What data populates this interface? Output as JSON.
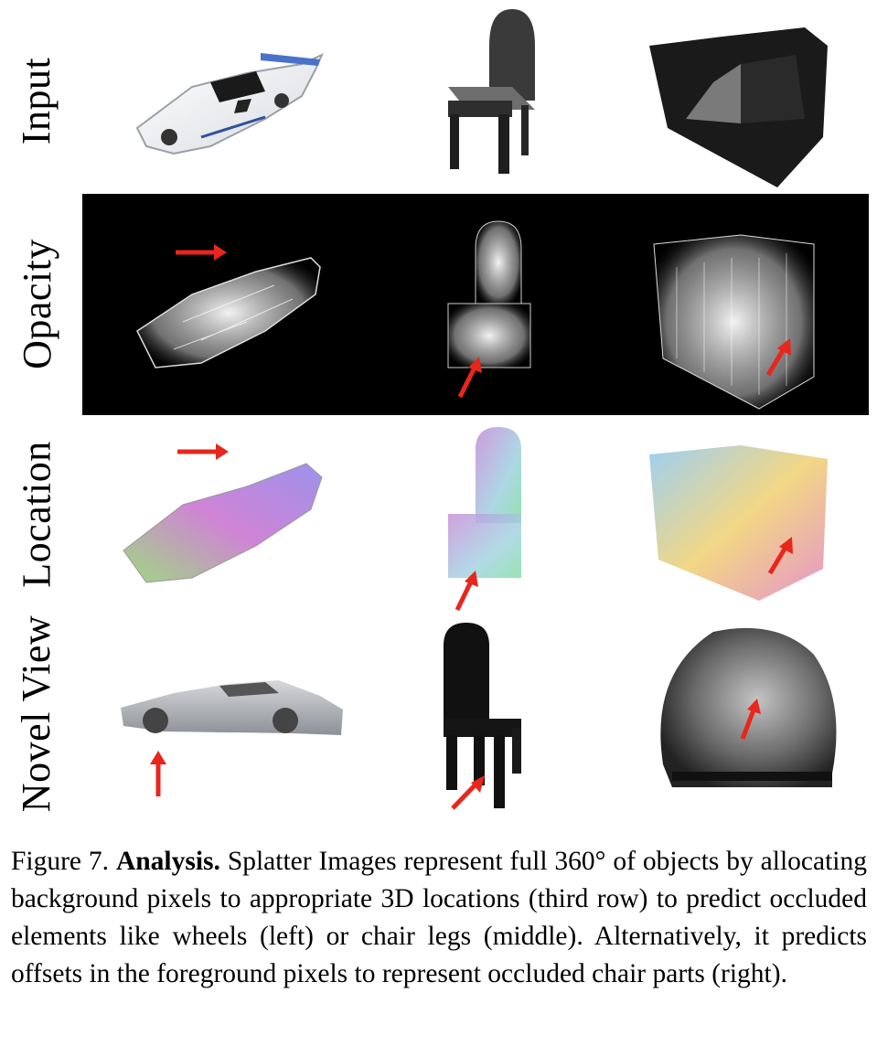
{
  "rows": [
    {
      "label": "Input"
    },
    {
      "label": "Opacity"
    },
    {
      "label": "Location"
    },
    {
      "label": "Novel View"
    }
  ],
  "caption": {
    "figure_label": "Figure 7.",
    "bold_title": "Analysis.",
    "text": "Splatter Images represent full 360° of objects by allocating background pixels to appropriate 3D locations (third row) to predict occluded elements like wheels (left) or chair legs (middle). Alternatively, it predicts offsets in the foreground pixels to represent occluded chair parts (right)."
  },
  "colors": {
    "arrow": "#e8261c",
    "opacity_background": "#000000",
    "page_background": "#ffffff"
  }
}
